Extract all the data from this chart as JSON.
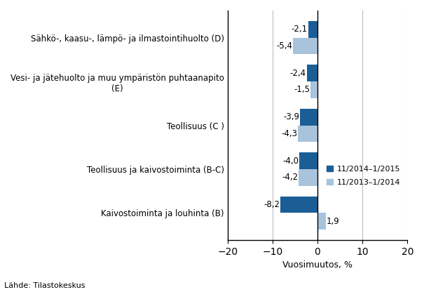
{
  "categories": [
    "Kaivostoiminta ja louhinta (B)",
    "Teollisuus ja kaivostoiminta (B-C)",
    "Teollisuus (C )",
    "Vesi- ja jätehuolto ja muu ympäristön puhtaanapito\n(E)",
    "Sähkö-, kaasu-, lämpö- ja ilmastointihuolto (D)"
  ],
  "series1_values": [
    -8.2,
    -4.0,
    -3.9,
    -2.4,
    -2.1
  ],
  "series2_values": [
    1.9,
    -4.2,
    -4.3,
    -1.5,
    -5.4
  ],
  "series1_labels": [
    "-8,2",
    "-4,0",
    "-3,9",
    "-2,4",
    "-2,1"
  ],
  "series2_labels": [
    "1,9",
    "-4,2",
    "-4,3",
    "-1,5",
    "-5,4"
  ],
  "series1_color": "#1B5E96",
  "series2_color": "#A8C4DC",
  "series1_label": "11/2014–1/2015",
  "series2_label": "11/2013–1/2014",
  "xlabel": "Vuosimuutos, %",
  "xlim": [
    -20,
    20
  ],
  "xticks": [
    -20,
    -10,
    0,
    10,
    20
  ],
  "bar_height": 0.38,
  "source_text": "Lähde: Tilastokeskus",
  "background_color": "#ffffff",
  "grid_color": "#bbbbbb"
}
